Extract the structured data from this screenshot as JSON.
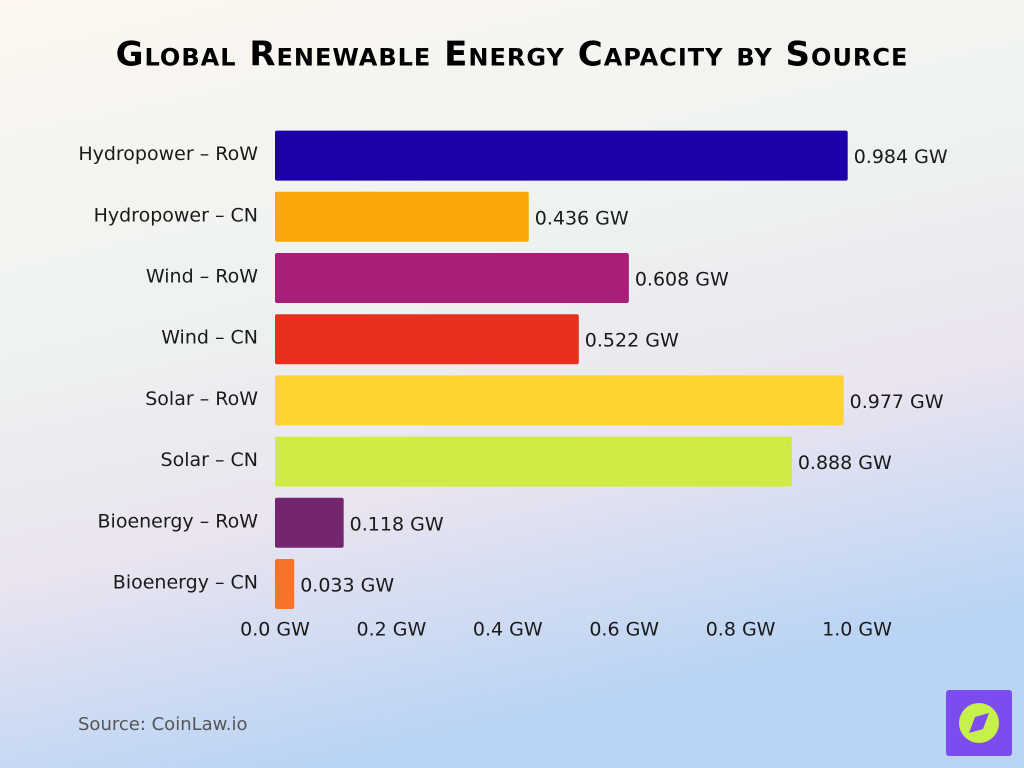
{
  "chart_data": {
    "type": "bar",
    "orientation": "horizontal",
    "title": "Global Renewable Energy Capacity by Source",
    "categories": [
      "Hydropower – RoW",
      "Hydropower – CN",
      "Wind – RoW",
      "Wind – CN",
      "Solar – RoW",
      "Solar – CN",
      "Bioenergy – RoW",
      "Bioenergy – CN"
    ],
    "values": [
      0.984,
      0.436,
      0.608,
      0.522,
      0.977,
      0.888,
      0.118,
      0.033
    ],
    "value_labels": [
      "0.984 GW",
      "0.436 GW",
      "0.608 GW",
      "0.522 GW",
      "0.977 GW",
      "0.888 GW",
      "0.118 GW",
      "0.033 GW"
    ],
    "colors": [
      "#1c00a8",
      "#fca708",
      "#a91e78",
      "#e8301f",
      "#fdd330",
      "#d0eb45",
      "#73266e",
      "#f87327"
    ],
    "xlim": [
      0,
      1.0
    ],
    "xticks": [
      {
        "value": 0,
        "label": "0.0 GW"
      },
      {
        "value": 0.2,
        "label": "0.2 GW"
      },
      {
        "value": 0.4,
        "label": "0.4 GW"
      },
      {
        "value": 0.6,
        "label": "0.6 GW"
      },
      {
        "value": 0.8,
        "label": "0.8 GW"
      },
      {
        "value": 1.0,
        "label": "1.0 GW"
      }
    ],
    "grid": false,
    "source": "Source: CoinLaw.io"
  }
}
